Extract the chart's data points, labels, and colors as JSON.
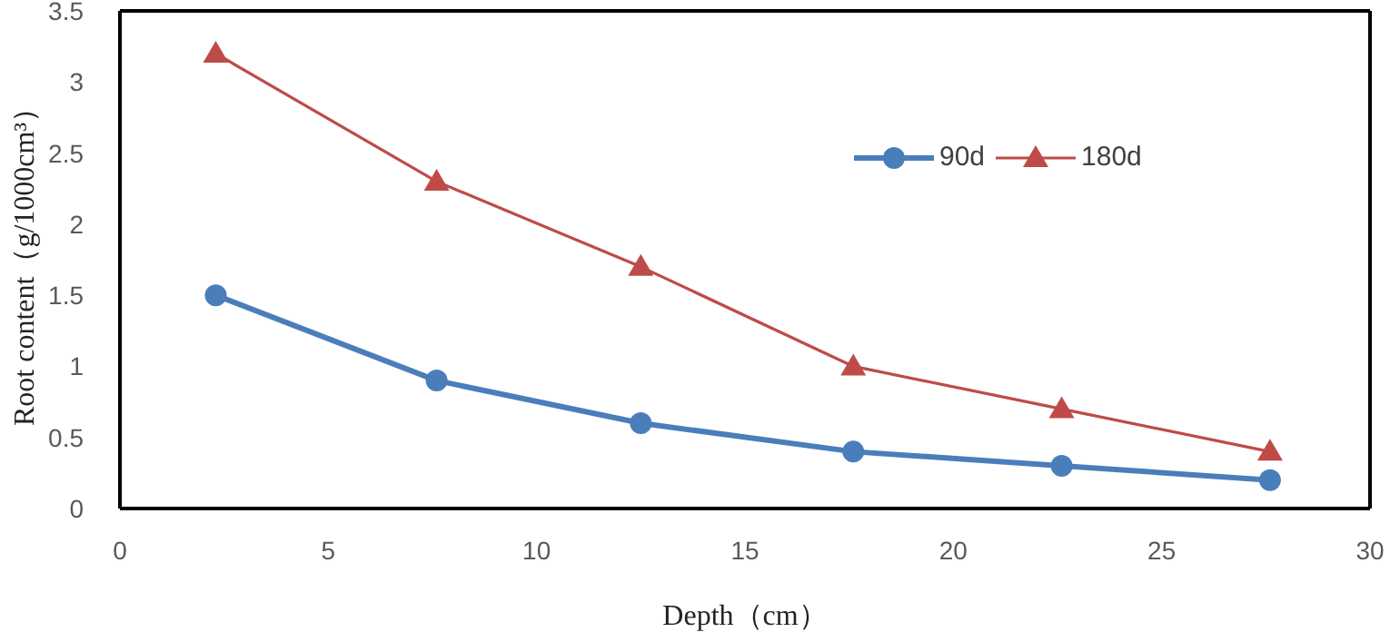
{
  "chart_data": {
    "type": "line",
    "xlabel": "Depth（cm）",
    "ylabel": "Root content（g/1000cm³）",
    "xlim": [
      0,
      30
    ],
    "xticks": [
      0,
      5,
      10,
      15,
      20,
      25,
      30
    ],
    "ylim": [
      0,
      3.5
    ],
    "yticks": [
      0,
      0.5,
      1,
      1.5,
      2,
      2.5,
      3,
      3.5
    ],
    "x": [
      2.3,
      7.6,
      12.5,
      17.6,
      22.6,
      27.6
    ],
    "series": [
      {
        "name": "90d",
        "color": "#4a7ebb",
        "values": [
          1.5,
          0.9,
          0.6,
          0.4,
          0.3,
          0.2
        ],
        "marker": "circle"
      },
      {
        "name": "180d",
        "color": "#be4b48",
        "values": [
          3.2,
          2.3,
          1.7,
          1.0,
          0.7,
          0.4
        ],
        "marker": "triangle"
      }
    ],
    "grid": false,
    "legend": "top right"
  }
}
